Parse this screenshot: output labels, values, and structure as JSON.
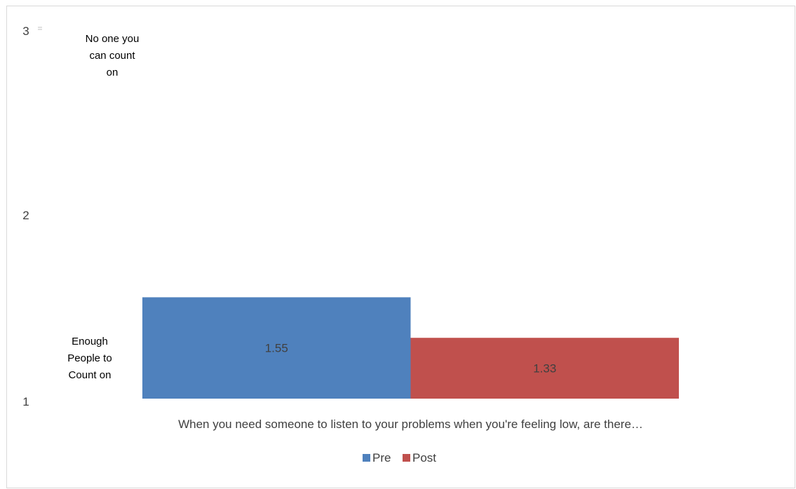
{
  "chart_data": {
    "type": "bar",
    "categories": [
      "When you need someone to listen to your problems when you're feeling low, are there…"
    ],
    "series": [
      {
        "name": "Pre",
        "values": [
          1.55
        ],
        "color": "#4f81bd"
      },
      {
        "name": "Post",
        "values": [
          1.33
        ],
        "color": "#c0504d"
      }
    ],
    "ylim": [
      1,
      3
    ],
    "yticks": [
      1,
      2,
      3
    ],
    "grid": false,
    "legend": "bottom",
    "annotations": [
      {
        "value": 3,
        "lines": [
          "No one you",
          "can count",
          "on"
        ]
      },
      {
        "value": 1,
        "lines": [
          "Enough",
          "People to",
          "Count on"
        ]
      }
    ],
    "data_labels": [
      "1.55",
      "1.33"
    ]
  }
}
